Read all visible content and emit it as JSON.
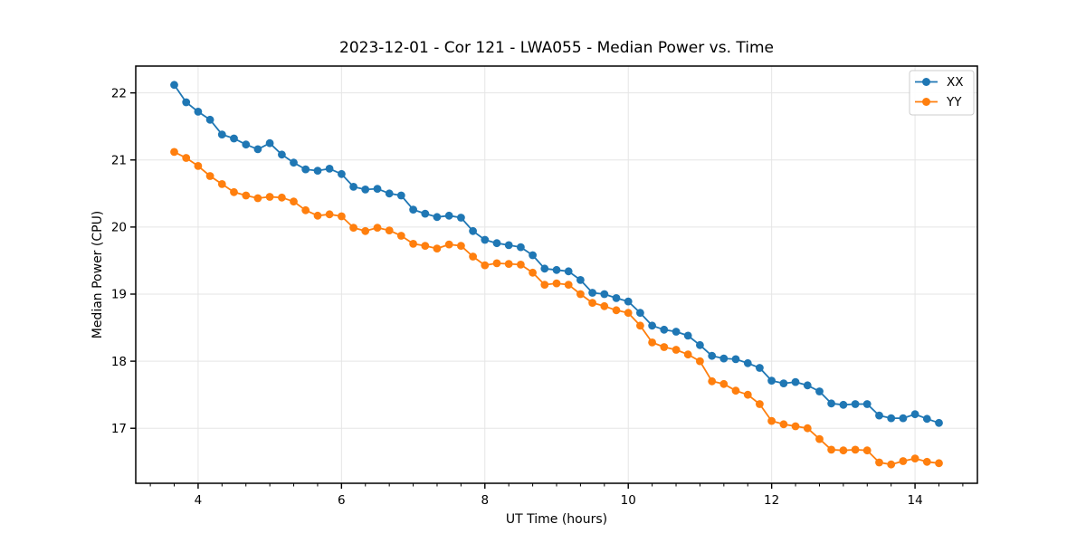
{
  "title": "2023-12-01 - Cor 121 - LWA055 - Median Power vs. Time",
  "colors": {
    "background": "#ffffff",
    "grid": "#e5e5e5",
    "spine": "#000000",
    "legend_border": "#cccccc",
    "series_xx": "#1f77b4",
    "series_yy": "#ff7f0e"
  },
  "legend": {
    "position": "upper right",
    "entries": [
      {
        "label": "XX",
        "color": "#1f77b4"
      },
      {
        "label": "YY",
        "color": "#ff7f0e"
      }
    ]
  },
  "chart_data": {
    "type": "line",
    "title": "2023-12-01 - Cor 121 - LWA055 - Median Power vs. Time",
    "xlabel": "UT Time (hours)",
    "ylabel": "Median Power (CPU)",
    "xlim": [
      3.13,
      14.87
    ],
    "ylim": [
      16.18,
      22.4
    ],
    "xticks": [
      4,
      6,
      8,
      10,
      12,
      14
    ],
    "yticks": [
      17,
      18,
      19,
      20,
      21,
      22
    ],
    "x_minor_tick_step": 0.33333,
    "grid": true,
    "marker": "o",
    "legend_position": "upper right",
    "x": [
      3.667,
      3.833,
      4.0,
      4.167,
      4.333,
      4.5,
      4.667,
      4.833,
      5.0,
      5.167,
      5.333,
      5.5,
      5.667,
      5.833,
      6.0,
      6.167,
      6.333,
      6.5,
      6.667,
      6.833,
      7.0,
      7.167,
      7.333,
      7.5,
      7.667,
      7.833,
      8.0,
      8.167,
      8.333,
      8.5,
      8.667,
      8.833,
      9.0,
      9.167,
      9.333,
      9.5,
      9.667,
      9.833,
      10.0,
      10.167,
      10.333,
      10.5,
      10.667,
      10.833,
      11.0,
      11.167,
      11.333,
      11.5,
      11.667,
      11.833,
      12.0,
      12.167,
      12.333,
      12.5,
      12.667,
      12.833,
      13.0,
      13.167,
      13.333,
      13.5,
      13.667,
      13.833,
      14.0,
      14.167,
      14.333
    ],
    "series": [
      {
        "name": "XX",
        "color": "#1f77b4",
        "values": [
          22.12,
          21.86,
          21.72,
          21.6,
          21.38,
          21.32,
          21.23,
          21.16,
          21.25,
          21.08,
          20.96,
          20.86,
          20.84,
          20.87,
          20.79,
          20.6,
          20.56,
          20.57,
          20.5,
          20.47,
          20.26,
          20.2,
          20.15,
          20.17,
          20.14,
          19.94,
          19.81,
          19.76,
          19.73,
          19.7,
          19.58,
          19.38,
          19.36,
          19.34,
          19.21,
          19.02,
          19.0,
          18.94,
          18.89,
          18.72,
          18.53,
          18.47,
          18.44,
          18.38,
          18.24,
          18.08,
          18.04,
          18.03,
          17.97,
          17.9,
          17.71,
          17.67,
          17.69,
          17.64,
          17.55,
          17.37,
          17.35,
          17.36,
          17.36,
          17.19,
          17.15,
          17.15,
          17.21,
          17.14,
          17.08
        ]
      },
      {
        "name": "YY",
        "color": "#ff7f0e",
        "values": [
          21.12,
          21.03,
          20.91,
          20.76,
          20.64,
          20.52,
          20.47,
          20.43,
          20.45,
          20.44,
          20.38,
          20.25,
          20.17,
          20.19,
          20.16,
          19.99,
          19.94,
          19.99,
          19.95,
          19.87,
          19.75,
          19.72,
          19.68,
          19.74,
          19.72,
          19.56,
          19.43,
          19.46,
          19.45,
          19.44,
          19.32,
          19.14,
          19.16,
          19.14,
          19.0,
          18.87,
          18.82,
          18.76,
          18.72,
          18.53,
          18.28,
          18.21,
          18.17,
          18.1,
          18.0,
          17.7,
          17.66,
          17.56,
          17.5,
          17.36,
          17.11,
          17.06,
          17.03,
          17.0,
          16.84,
          16.68,
          16.67,
          16.68,
          16.67,
          16.49,
          16.46,
          16.51,
          16.55,
          16.5,
          16.48
        ]
      }
    ]
  }
}
